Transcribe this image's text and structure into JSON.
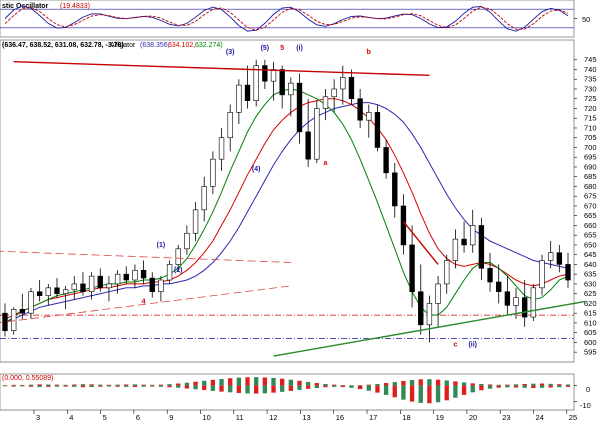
{
  "chart_data": [
    {
      "type": "line",
      "panel": "oscillator",
      "title_fragment": "stic Oscillator",
      "value_label": "(19.4833)",
      "y_ticks": [
        50
      ],
      "ylim": [
        0,
        100
      ],
      "colors": {
        "k": "#1a1aa0",
        "d": "#c00000",
        "level": "#1a1aa0"
      }
    },
    {
      "type": "candlestick",
      "panel": "price",
      "header_ohlc": "(636.47, 638.52, 631.08, 632.78, -3.76)",
      "indicator_name": "Alligator",
      "indicator_values": [
        "(638.356,",
        "634.102,",
        "632.274)"
      ],
      "indicator_value_colors": [
        "#2a2ab0",
        "#d40000",
        "#008000"
      ],
      "ylim": [
        592,
        750
      ],
      "y_ticks": [
        595,
        600,
        605,
        610,
        615,
        620,
        625,
        630,
        635,
        640,
        645,
        650,
        655,
        660,
        665,
        670,
        675,
        680,
        685,
        690,
        695,
        700,
        705,
        710,
        715,
        720,
        725,
        730,
        735,
        740,
        745
      ],
      "x_tick_labels": [
        "3",
        "4",
        "5",
        "6",
        "9",
        "10",
        "11",
        "12",
        "13",
        "16",
        "17",
        "18",
        "19",
        "20",
        "23",
        "24",
        "25"
      ],
      "ohlc": [
        [
          615,
          620,
          603,
          606
        ],
        [
          606,
          618,
          604,
          617
        ],
        [
          617,
          625,
          612,
          615
        ],
        [
          615,
          628,
          612,
          626
        ],
        [
          626,
          632,
          621,
          624
        ],
        [
          624,
          630,
          619,
          628
        ],
        [
          628,
          633,
          623,
          625
        ],
        [
          625,
          629,
          617,
          627
        ],
        [
          627,
          634,
          622,
          630
        ],
        [
          630,
          636,
          624,
          626
        ],
        [
          626,
          636,
          622,
          634
        ],
        [
          634,
          638,
          626,
          628
        ],
        [
          628,
          634,
          621,
          630
        ],
        [
          630,
          637,
          625,
          635
        ],
        [
          635,
          639,
          630,
          632
        ],
        [
          632,
          640,
          628,
          637
        ],
        [
          637,
          642,
          630,
          633
        ],
        [
          633,
          636,
          623,
          626
        ],
        [
          626,
          634,
          621,
          632
        ],
        [
          632,
          642,
          630,
          640
        ],
        [
          640,
          650,
          636,
          648
        ],
        [
          648,
          660,
          645,
          656
        ],
        [
          656,
          672,
          652,
          668
        ],
        [
          668,
          685,
          662,
          680
        ],
        [
          680,
          698,
          676,
          694
        ],
        [
          694,
          710,
          688,
          705
        ],
        [
          705,
          722,
          698,
          718
        ],
        [
          718,
          735,
          712,
          732
        ],
        [
          732,
          742,
          720,
          724
        ],
        [
          724,
          745,
          721,
          742
        ],
        [
          742,
          745,
          730,
          734
        ],
        [
          734,
          744,
          724,
          740
        ],
        [
          740,
          742,
          720,
          727
        ],
        [
          727,
          736,
          716,
          733
        ],
        [
          733,
          738,
          702,
          708
        ],
        [
          708,
          725,
          690,
          694
        ],
        [
          694,
          724,
          692,
          720
        ],
        [
          720,
          730,
          714,
          726
        ],
        [
          726,
          735,
          718,
          730
        ],
        [
          730,
          742,
          722,
          736
        ],
        [
          736,
          740,
          722,
          725
        ],
        [
          725,
          730,
          710,
          714
        ],
        [
          714,
          722,
          705,
          718
        ],
        [
          718,
          722,
          698,
          700
        ],
        [
          700,
          704,
          684,
          687
        ],
        [
          687,
          692,
          664,
          670
        ],
        [
          670,
          676,
          645,
          650
        ],
        [
          650,
          660,
          618,
          626
        ],
        [
          626,
          640,
          604,
          609
        ],
        [
          609,
          624,
          600,
          620
        ],
        [
          620,
          634,
          608,
          630
        ],
        [
          630,
          645,
          625,
          642
        ],
        [
          642,
          658,
          638,
          653
        ],
        [
          653,
          662,
          646,
          650
        ],
        [
          650,
          668,
          646,
          660
        ],
        [
          660,
          664,
          632,
          638
        ],
        [
          638,
          646,
          626,
          631
        ],
        [
          631,
          640,
          620,
          626
        ],
        [
          626,
          634,
          614,
          619
        ],
        [
          619,
          628,
          612,
          623
        ],
        [
          623,
          632,
          608,
          613
        ],
        [
          613,
          630,
          611,
          628
        ],
        [
          628,
          645,
          624,
          642
        ],
        [
          642,
          652,
          638,
          646
        ],
        [
          646,
          650,
          636,
          640
        ],
        [
          640,
          646,
          628,
          632
        ]
      ],
      "alligator": {
        "jaw": [
          610,
          612,
          614,
          616,
          618,
          619,
          620,
          621,
          622,
          623,
          624,
          625,
          626,
          627,
          628,
          628,
          629,
          629,
          630,
          630,
          631,
          632,
          634,
          637,
          641,
          646,
          652,
          659,
          667,
          675,
          683,
          691,
          698,
          704,
          709,
          713,
          716,
          718,
          720,
          721,
          722,
          723,
          723,
          722,
          720,
          717,
          713,
          707,
          700,
          692,
          684,
          676,
          669,
          663,
          658,
          655,
          652,
          650,
          648,
          646,
          644,
          642,
          641,
          640,
          639,
          638
        ],
        "teeth": [
          612,
          614,
          616,
          618,
          620,
          622,
          623,
          624,
          625,
          626,
          627,
          628,
          628,
          629,
          630,
          630,
          630,
          631,
          631,
          632,
          634,
          637,
          641,
          646,
          652,
          660,
          668,
          677,
          686,
          694,
          702,
          709,
          714,
          718,
          721,
          723,
          724,
          725,
          725,
          724,
          722,
          719,
          715,
          710,
          704,
          696,
          687,
          677,
          666,
          656,
          648,
          643,
          640,
          639,
          640,
          641,
          640,
          638,
          635,
          632,
          630,
          629,
          630,
          632,
          634,
          635
        ],
        "lips": [
          610,
          613,
          616,
          618,
          620,
          622,
          624,
          625,
          626,
          627,
          628,
          629,
          630,
          630,
          631,
          631,
          632,
          632,
          633,
          635,
          638,
          643,
          650,
          658,
          667,
          677,
          688,
          698,
          708,
          716,
          722,
          727,
          729,
          730,
          729,
          727,
          725,
          722,
          718,
          712,
          704,
          694,
          683,
          672,
          660,
          648,
          636,
          626,
          618,
          614,
          614,
          618,
          625,
          632,
          638,
          641,
          641,
          638,
          634,
          629,
          624,
          622,
          623,
          627,
          632,
          634
        ]
      },
      "wave_labels": [
        {
          "text": "(3)",
          "color": "#1a1aa0"
        },
        {
          "text": "(5)",
          "color": "#1a1aa0"
        },
        {
          "text": "5",
          "color": "#d40000"
        },
        {
          "text": "(i)",
          "color": "#1a1aa0"
        },
        {
          "text": "b",
          "color": "#d40000"
        },
        {
          "text": "a",
          "color": "#d40000"
        },
        {
          "text": "(4)",
          "color": "#1a1aa0"
        },
        {
          "text": "(1)",
          "color": "#1a1aa0"
        },
        {
          "text": "(2)",
          "color": "#1a1aa0"
        },
        {
          "text": "4",
          "color": "#d40000"
        },
        {
          "text": "c",
          "color": "#d40000"
        },
        {
          "text": "(ii)",
          "color": "#1a1aa0"
        }
      ],
      "trend_lines": [
        {
          "color": "#c80000",
          "style": "solid",
          "points": [
            [
              744,
              1
            ],
            [
              737,
              49
            ]
          ]
        },
        {
          "color": "#c80000",
          "style": "solid",
          "points": [
            [
              662,
              46
            ],
            [
              640,
              50
            ]
          ]
        },
        {
          "color": "#2a8a2a",
          "style": "solid",
          "points": [
            [
              593,
              31
            ],
            [
              621,
              67
            ]
          ]
        },
        {
          "color": "#e04040",
          "style": "dashed",
          "points": [
            [
              648,
              -8
            ],
            [
              641,
              33
            ]
          ]
        },
        {
          "color": "#e04040",
          "style": "dashed",
          "points": [
            [
              606,
              -8
            ],
            [
              629,
              33
            ]
          ]
        }
      ],
      "h_levels": [
        {
          "value": 614,
          "color": "#d40000",
          "style": "dash-dot"
        },
        {
          "value": 602,
          "color": "#1a1aa0",
          "style": "dash-dot"
        }
      ]
    },
    {
      "type": "bar",
      "panel": "histogram",
      "header_value": "(0.000, 0.55089)",
      "y_ticks": [
        0,
        -10
      ],
      "ylim": [
        -14,
        6
      ],
      "upper": [
        0.3,
        0.5,
        0.4,
        0.6,
        0.8,
        0.7,
        0.6,
        0.5,
        0.7,
        0.9,
        0.8,
        0.6,
        0.5,
        0.6,
        0.7,
        0.8,
        0.6,
        0.5,
        0.6,
        0.9,
        1.3,
        1.8,
        2.4,
        3.0,
        3.6,
        4.1,
        4.6,
        5.0,
        5.2,
        5.3,
        5.1,
        4.8,
        4.3,
        3.7,
        3.0,
        2.3,
        1.6,
        1.0,
        0.6,
        0.3,
        0.2,
        0.3,
        0.6,
        1.0,
        1.6,
        2.2,
        2.9,
        3.5,
        3.9,
        4.0,
        3.7,
        3.2,
        2.6,
        2.0,
        1.4,
        1.0,
        0.7,
        0.5,
        0.6,
        0.8,
        1.0,
        1.2,
        1.3,
        1.1,
        0.9,
        0.7
      ],
      "lower": [
        -0.4,
        -0.6,
        -0.5,
        -0.7,
        -0.9,
        -0.8,
        -0.7,
        -0.6,
        -0.8,
        -1.0,
        -0.9,
        -0.7,
        -0.6,
        -0.7,
        -0.8,
        -0.9,
        -0.7,
        -0.6,
        -0.7,
        -1.0,
        -1.3,
        -1.8,
        -2.3,
        -2.8,
        -3.3,
        -3.8,
        -4.2,
        -4.6,
        -4.9,
        -5.0,
        -4.8,
        -4.4,
        -3.9,
        -3.3,
        -2.7,
        -2.0,
        -1.5,
        -1.0,
        -0.8,
        -0.9,
        -1.4,
        -2.2,
        -3.2,
        -4.4,
        -5.8,
        -7.3,
        -8.8,
        -10.0,
        -10.8,
        -11.0,
        -10.4,
        -9.2,
        -7.6,
        -5.8,
        -4.2,
        -2.9,
        -1.9,
        -1.3,
        -1.1,
        -1.2,
        -1.4,
        -1.5,
        -1.4,
        -1.2,
        -1.0,
        -0.8
      ],
      "colors": {
        "up": "#2e8b57",
        "down": "#dc2020"
      }
    }
  ]
}
